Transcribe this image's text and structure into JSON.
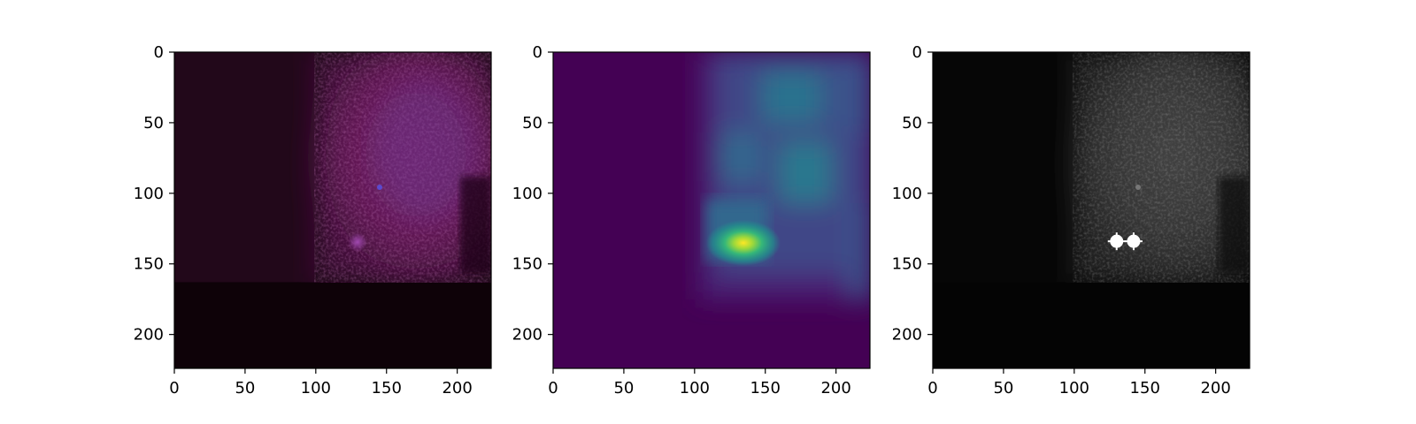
{
  "chart_data": [
    {
      "type": "heatmap",
      "image": "input-frame",
      "colormap": "magenta-on-black",
      "xlim": [
        0,
        224
      ],
      "ylim": [
        224,
        0
      ],
      "x_ticks": [
        0,
        50,
        100,
        150,
        200
      ],
      "y_ticks": [
        0,
        50,
        100,
        150,
        200
      ],
      "features": [
        {
          "kind": "bright-region",
          "x": [
            100,
            224
          ],
          "y": [
            0,
            170
          ]
        },
        {
          "kind": "blob",
          "x": 130,
          "y": 135
        },
        {
          "kind": "speck",
          "x": 145,
          "y": 96
        }
      ]
    },
    {
      "type": "heatmap",
      "image": "density-map",
      "colormap": "viridis",
      "xlim": [
        0,
        224
      ],
      "ylim": [
        224,
        0
      ],
      "x_ticks": [
        0,
        50,
        100,
        150,
        200
      ],
      "y_ticks": [
        0,
        50,
        100,
        150,
        200
      ],
      "features": [
        {
          "kind": "peak",
          "x": 135,
          "y": 135
        },
        {
          "kind": "elevated-region",
          "x": [
            105,
            224
          ],
          "y": [
            0,
            175
          ]
        }
      ]
    },
    {
      "type": "heatmap",
      "image": "detections-overlay",
      "colormap": "gray",
      "xlim": [
        0,
        224
      ],
      "ylim": [
        224,
        0
      ],
      "x_ticks": [
        0,
        50,
        100,
        150,
        200
      ],
      "y_ticks": [
        0,
        50,
        100,
        150,
        200
      ],
      "markers": [
        {
          "x": 130,
          "y": 134
        },
        {
          "x": 142,
          "y": 134
        }
      ]
    }
  ]
}
